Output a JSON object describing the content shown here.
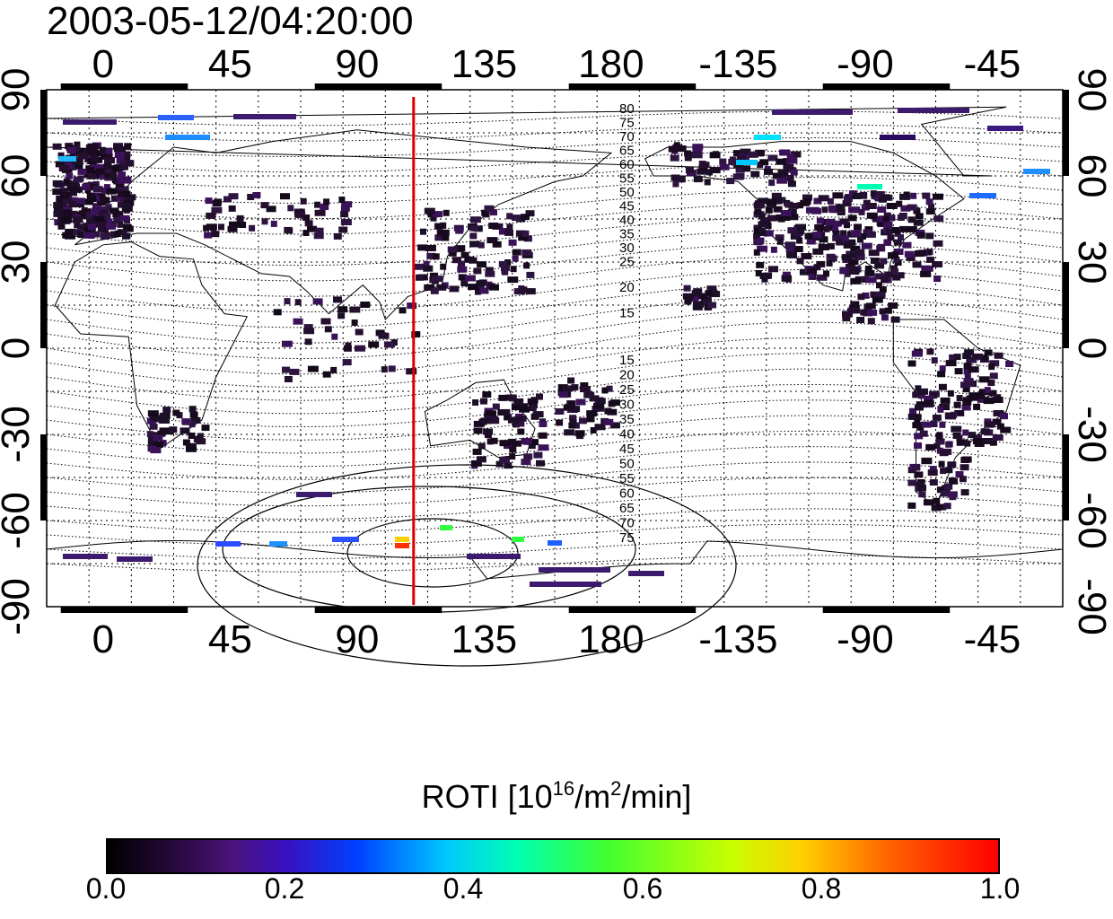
{
  "title": "2003-05-12/04:20:00",
  "map": {
    "top_lon_labels": [
      "0",
      "45",
      "90",
      "135",
      "180",
      "-135",
      "-90",
      "-45"
    ],
    "bottom_lon_labels": [
      "0",
      "45",
      "90",
      "135",
      "180",
      "-135",
      "-90",
      "-45"
    ],
    "left_lat_labels": [
      "90",
      "60",
      "30",
      "0",
      "-30",
      "-60",
      "-90"
    ],
    "right_lat_labels": [
      "90",
      "60",
      "30",
      "0",
      "-30",
      "-60",
      "-90"
    ],
    "north_contour_labels": [
      "80",
      "75",
      "70",
      "65",
      "60",
      "55",
      "50",
      "45",
      "40",
      "35",
      "30",
      "25",
      "20",
      "15"
    ],
    "south_contour_labels": [
      "15",
      "20",
      "25",
      "30",
      "35",
      "40",
      "45",
      "50",
      "55",
      "60",
      "65",
      "70",
      "75"
    ],
    "meridian_line_color": "#e00000",
    "meridian_longitude": 110
  },
  "colorbar": {
    "title_main": "ROTI  [10",
    "title_sup1": "16",
    "title_mid": "/m",
    "title_sup2": "2",
    "title_end": "/min]",
    "ticks": [
      "0.0",
      "0.2",
      "0.4",
      "0.6",
      "0.8",
      "1.0"
    ]
  }
}
